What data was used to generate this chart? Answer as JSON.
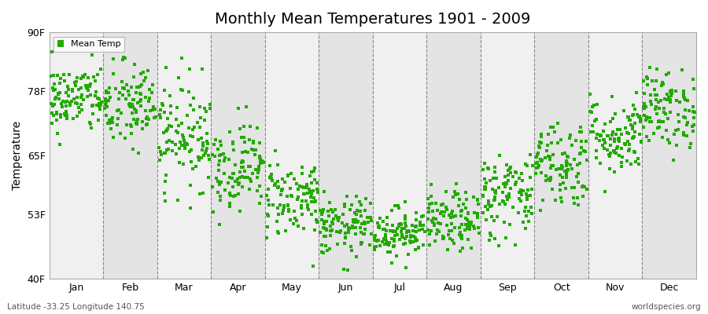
{
  "title": "Monthly Mean Temperatures 1901 - 2009",
  "ylabel": "Temperature",
  "yticks": [
    40,
    53,
    65,
    78,
    90
  ],
  "ytick_labels": [
    "40F",
    "53F",
    "65F",
    "78F",
    "90F"
  ],
  "ylim": [
    40,
    90
  ],
  "months": [
    "Jan",
    "Feb",
    "Mar",
    "Apr",
    "May",
    "Jun",
    "Jul",
    "Aug",
    "Sep",
    "Oct",
    "Nov",
    "Dec"
  ],
  "dot_color": "#22aa00",
  "legend_label": "Mean Temp",
  "bottom_left": "Latitude -33.25 Longitude 140.75",
  "bottom_right": "worldspecies.org",
  "band_colors": [
    "#f0f0f0",
    "#e4e4e4"
  ],
  "monthly_mean_temps": [
    76.5,
    75.0,
    69.5,
    63.0,
    56.5,
    50.5,
    49.5,
    51.5,
    57.0,
    63.5,
    69.0,
    74.5
  ],
  "monthly_spread": [
    3.5,
    4.5,
    5.5,
    4.5,
    4.0,
    3.0,
    2.5,
    3.0,
    4.5,
    4.5,
    4.0,
    4.0
  ],
  "n_years": 109,
  "seed": 42
}
